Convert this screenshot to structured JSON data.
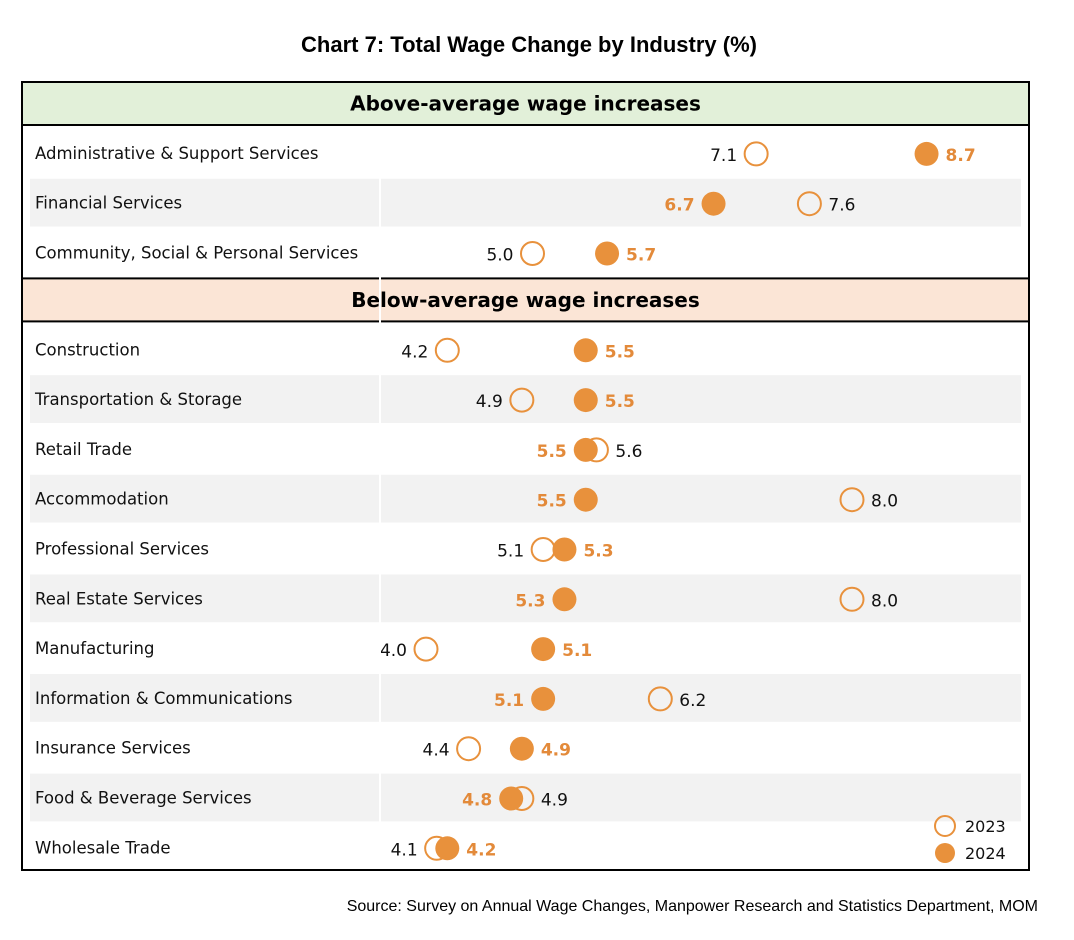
{
  "title": "Chart 7: Total Wage Change by Industry (%)",
  "source": "Source: Survey on Annual Wage Changes, Manpower Research and Statistics Department, MOM",
  "colors": {
    "accent": "#E8913C",
    "label_2024": "#E38A3A",
    "above_bg": "#E2F0D9",
    "below_bg": "#FBE5D6",
    "row_stripe": "#F2F2F2"
  },
  "chart_data": {
    "type": "scatter",
    "title": "Chart 7: Total Wage Change by Industry (%)",
    "xlabel": "",
    "ylabel": "",
    "grid": false,
    "legend_position": "bottom-right",
    "legend": [
      {
        "name": "2023",
        "style": "hollow-circle"
      },
      {
        "name": "2024",
        "style": "filled-circle"
      }
    ],
    "groups": [
      {
        "label": "Above-average wage increases",
        "rows": [
          {
            "industry": "Administrative & Support Services",
            "v2023": "7.1",
            "v2024": "8.7"
          },
          {
            "industry": "Financial Services",
            "v2023": "7.6",
            "v2024": "6.7"
          },
          {
            "industry": "Community, Social & Personal Services",
            "v2023": "5.0",
            "v2024": "5.7"
          }
        ]
      },
      {
        "label": "Below-average wage increases",
        "rows": [
          {
            "industry": "Construction",
            "v2023": "4.2",
            "v2024": "5.5"
          },
          {
            "industry": "Transportation & Storage",
            "v2023": "4.9",
            "v2024": "5.5"
          },
          {
            "industry": "Retail Trade",
            "v2023": "5.6",
            "v2024": "5.5"
          },
          {
            "industry": "Accommodation",
            "v2023": "8.0",
            "v2024": "5.5"
          },
          {
            "industry": "Professional Services",
            "v2023": "5.1",
            "v2024": "5.3"
          },
          {
            "industry": "Real Estate Services",
            "v2023": "8.0",
            "v2024": "5.3"
          },
          {
            "industry": "Manufacturing",
            "v2023": "4.0",
            "v2024": "5.1"
          },
          {
            "industry": "Information & Communications",
            "v2023": "6.2",
            "v2024": "5.1"
          },
          {
            "industry": "Insurance Services",
            "v2023": "4.4",
            "v2024": "4.9"
          },
          {
            "industry": "Food & Beverage Services",
            "v2023": "4.9",
            "v2024": "4.8"
          },
          {
            "industry": "Wholesale Trade",
            "v2023": "4.1",
            "v2024": "4.2"
          }
        ]
      }
    ]
  }
}
